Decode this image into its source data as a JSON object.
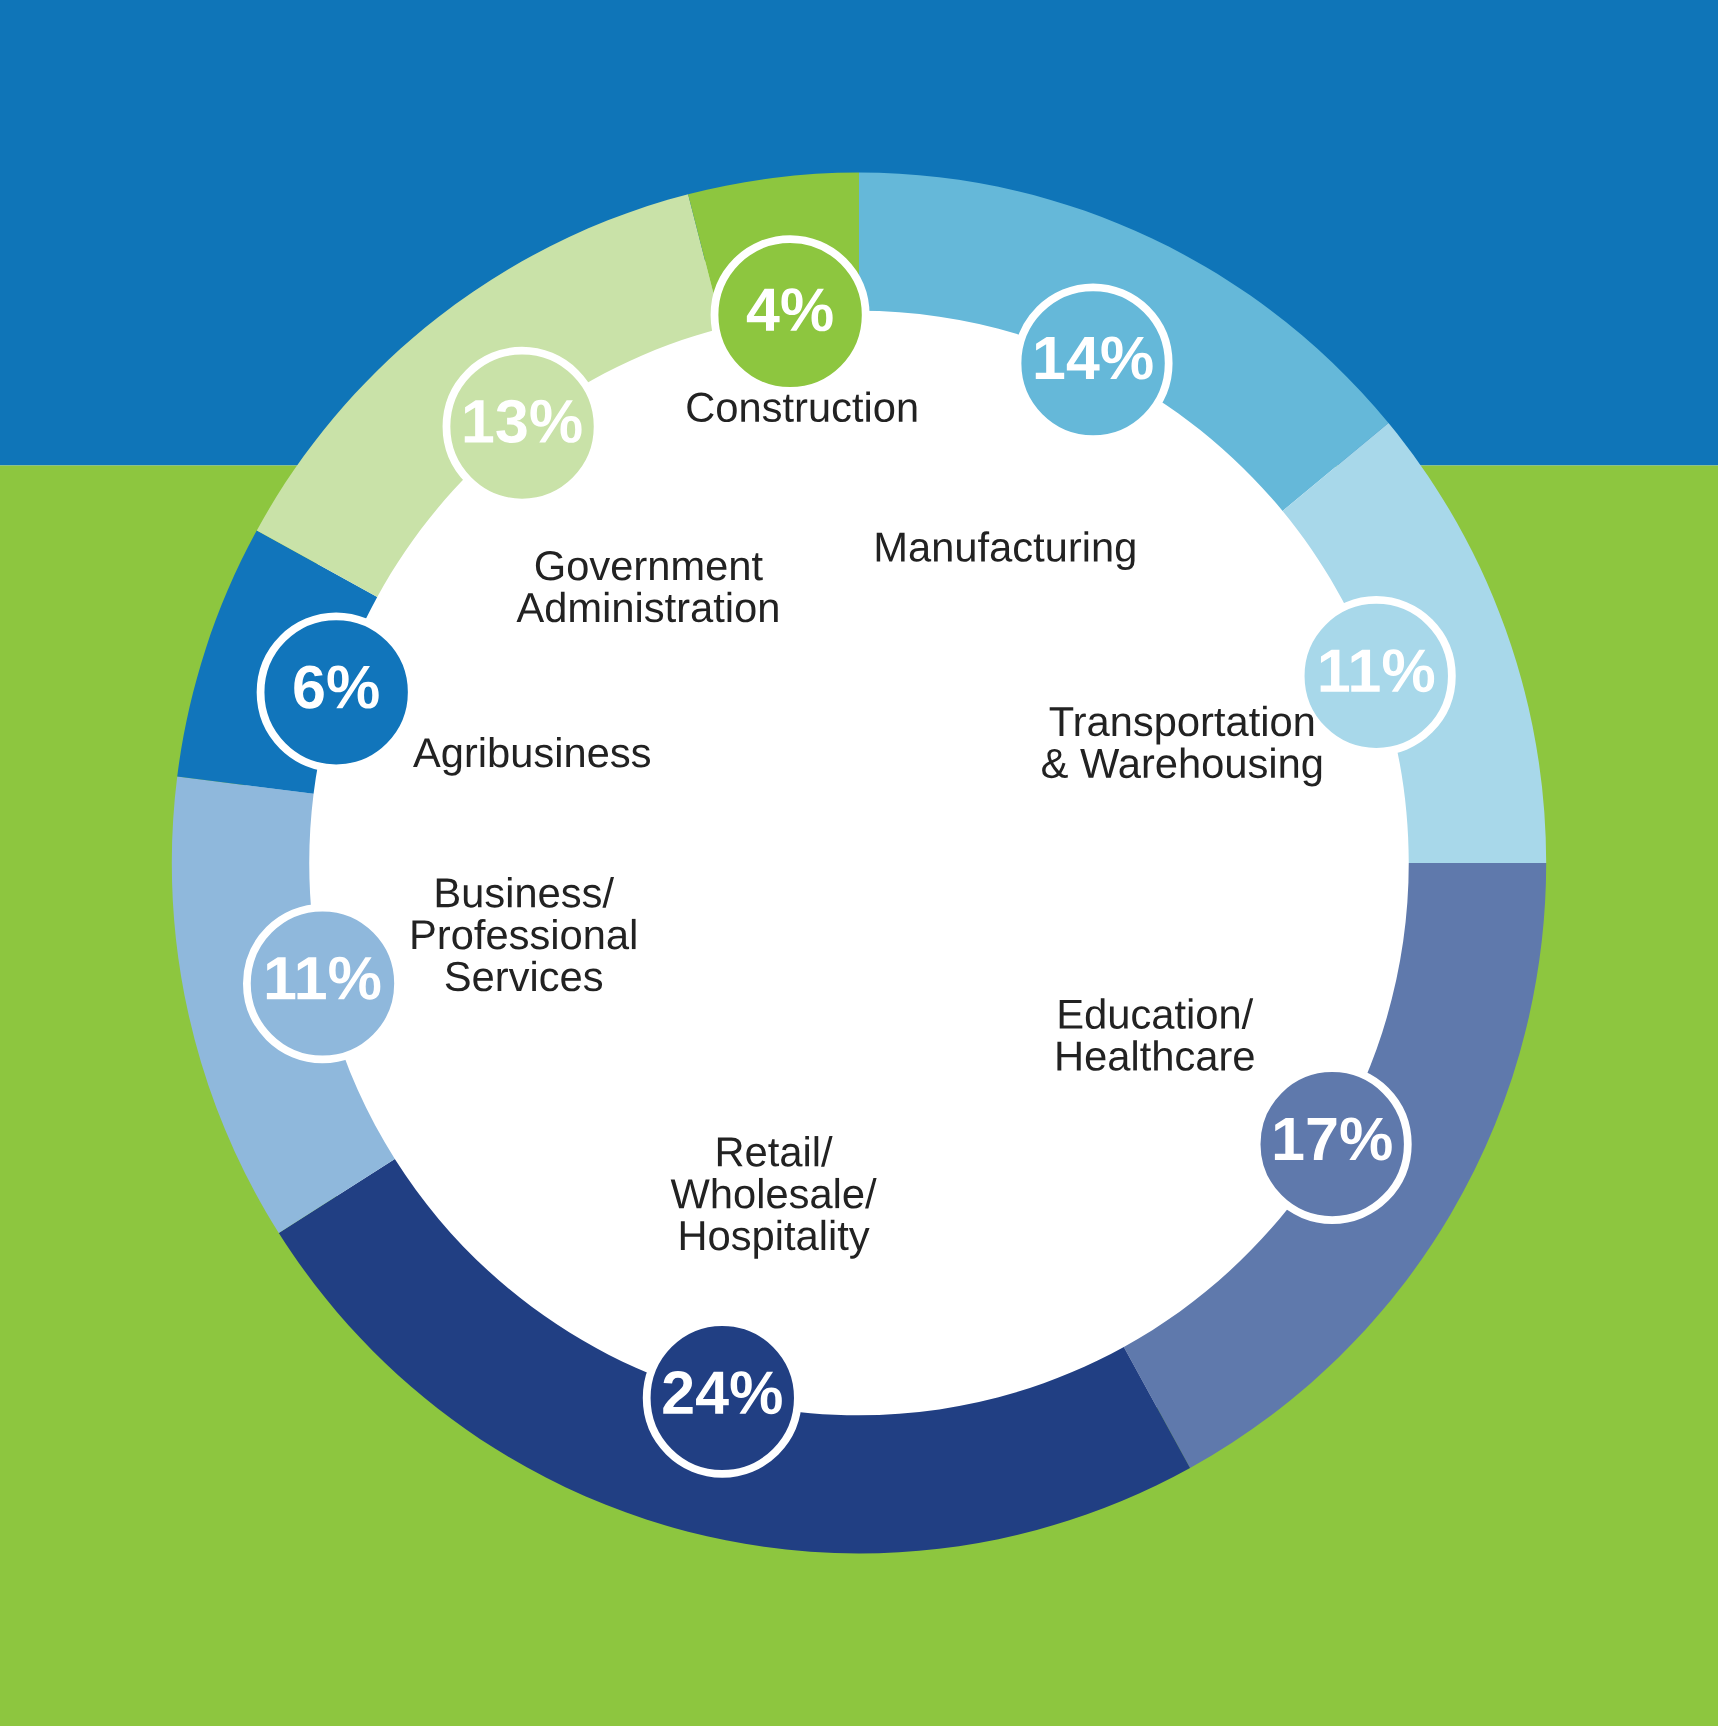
{
  "chart_data": {
    "type": "donut",
    "categories": [
      "Manufacturing",
      "Transportation\n& Warehousing",
      "Education/\nHealthcare",
      "Retail/\nWholesale/\nHospitality",
      "Business/\nProfessional\nServices",
      "Agribusiness",
      "Government\nAdministration",
      "Construction"
    ],
    "values": [
      14,
      11,
      17,
      24,
      11,
      6,
      13,
      4
    ],
    "value_labels": [
      "14%",
      "11%",
      "17%",
      "24%",
      "11%",
      "6%",
      "13%",
      "4%"
    ],
    "colors": [
      "#65b8d9",
      "#a8d8ea",
      "#5f79ac",
      "#213f83",
      "#8fb8dc",
      "#1175bb",
      "#c9e2a8",
      "#8dc63f"
    ],
    "legend": false
  }
}
